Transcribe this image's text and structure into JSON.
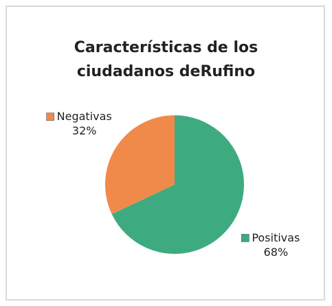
{
  "chart_data": {
    "type": "pie",
    "title": "Características de los ciudadanos deRufino",
    "categories": [
      "Positivas",
      "Negativas"
    ],
    "values": [
      68,
      32
    ],
    "value_labels": [
      "68%",
      "32%"
    ],
    "colors": [
      "#3dab7f",
      "#f08a4b"
    ]
  }
}
